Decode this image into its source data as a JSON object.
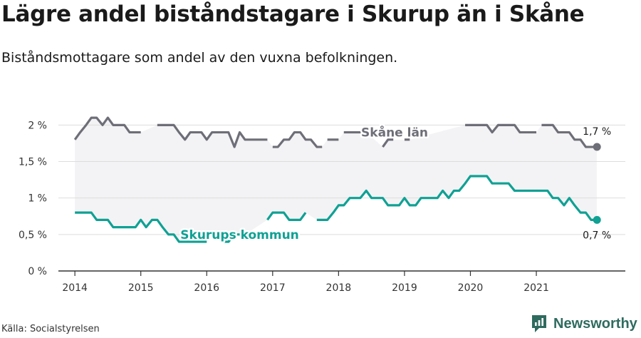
{
  "header": {
    "title": "Lägre andel biståndstagare i Skurup än i Skåne",
    "subtitle": "Biståndsmottagare som andel av den vuxna befolkningen."
  },
  "footer": {
    "source": "Källa: Socialstyrelsen",
    "brand": "Newsworthy"
  },
  "colors": {
    "skane": "#6e6e78",
    "skurup": "#0fa194",
    "band": "#f3f3f5",
    "grid": "#dddddd",
    "axis": "#333333",
    "brand": "#2f6b5f"
  },
  "chart_data": {
    "type": "line",
    "x_unit": "year (decimal)",
    "xlim": [
      2013.75,
      2022.35
    ],
    "ylim": [
      0,
      2.15
    ],
    "y_ticks": [
      0,
      0.5,
      1,
      1.5,
      2
    ],
    "y_tick_labels": [
      "0 %",
      "0,5 %",
      "1 %",
      "1,5 %",
      "2 %"
    ],
    "x_ticks": [
      2014,
      2015,
      2016,
      2017,
      2018,
      2019,
      2020,
      2021
    ],
    "x_tick_labels": [
      "2014",
      "2015",
      "2016",
      "2017",
      "2018",
      "2019",
      "2020",
      "2021"
    ],
    "grid": "horizontal",
    "series": [
      {
        "name": "Skåne län",
        "end_label": "1,7 %",
        "points": [
          [
            2014.0,
            1.8
          ],
          [
            2014.08,
            1.9
          ],
          [
            2014.17,
            2.0
          ],
          [
            2014.25,
            2.1
          ],
          [
            2014.33,
            2.1
          ],
          [
            2014.42,
            2.0
          ],
          [
            2014.5,
            2.1
          ],
          [
            2014.58,
            2.0
          ],
          [
            2014.67,
            2.0
          ],
          [
            2014.75,
            2.0
          ],
          [
            2014.83,
            1.9
          ],
          [
            2014.92,
            1.9
          ],
          [
            2015.0,
            1.9
          ],
          null,
          [
            2015.25,
            2.0
          ],
          [
            2015.33,
            2.0
          ],
          [
            2015.42,
            2.0
          ],
          [
            2015.5,
            2.0
          ],
          [
            2015.58,
            1.9
          ],
          [
            2015.67,
            1.8
          ],
          [
            2015.75,
            1.9
          ],
          [
            2015.83,
            1.9
          ],
          [
            2015.92,
            1.9
          ],
          [
            2016.0,
            1.8
          ],
          [
            2016.08,
            1.9
          ],
          [
            2016.17,
            1.9
          ],
          [
            2016.25,
            1.9
          ],
          [
            2016.33,
            1.9
          ],
          [
            2016.42,
            1.7
          ],
          [
            2016.5,
            1.9
          ],
          [
            2016.58,
            1.8
          ],
          [
            2016.67,
            1.8
          ],
          [
            2016.75,
            1.8
          ],
          [
            2016.83,
            1.8
          ],
          [
            2016.92,
            1.8
          ],
          null,
          [
            2017.0,
            1.7
          ],
          [
            2017.08,
            1.7
          ],
          [
            2017.17,
            1.8
          ],
          [
            2017.25,
            1.8
          ],
          [
            2017.33,
            1.9
          ],
          [
            2017.42,
            1.9
          ],
          [
            2017.5,
            1.8
          ],
          [
            2017.58,
            1.8
          ],
          [
            2017.67,
            1.7
          ],
          [
            2017.75,
            1.7
          ],
          null,
          [
            2017.83,
            1.8
          ],
          [
            2017.92,
            1.8
          ],
          [
            2018.0,
            1.8
          ],
          null,
          [
            2018.08,
            1.9
          ],
          [
            2018.17,
            1.9
          ],
          [
            2018.25,
            1.9
          ],
          [
            2018.33,
            1.9
          ],
          [
            2018.42,
            1.9
          ],
          null,
          [
            2018.67,
            1.7
          ],
          [
            2018.75,
            1.8
          ],
          [
            2018.83,
            1.8
          ],
          null,
          [
            2019.0,
            1.8
          ],
          [
            2019.08,
            1.8
          ],
          null,
          [
            2019.92,
            2.0
          ],
          [
            2020.0,
            2.0
          ],
          [
            2020.08,
            2.0
          ],
          [
            2020.17,
            2.0
          ],
          [
            2020.25,
            2.0
          ],
          [
            2020.33,
            1.9
          ],
          [
            2020.42,
            2.0
          ],
          [
            2020.5,
            2.0
          ],
          [
            2020.58,
            2.0
          ],
          [
            2020.67,
            2.0
          ],
          [
            2020.75,
            1.9
          ],
          [
            2020.83,
            1.9
          ],
          [
            2020.92,
            1.9
          ],
          [
            2021.0,
            1.9
          ],
          null,
          [
            2021.08,
            2.0
          ],
          [
            2021.17,
            2.0
          ],
          [
            2021.25,
            2.0
          ],
          [
            2021.33,
            1.9
          ],
          [
            2021.42,
            1.9
          ],
          [
            2021.5,
            1.9
          ],
          [
            2021.58,
            1.8
          ],
          [
            2021.67,
            1.8
          ],
          [
            2021.75,
            1.7
          ],
          [
            2021.83,
            1.7
          ],
          [
            2021.92,
            1.7
          ]
        ]
      },
      {
        "name": "Skurups kommun",
        "end_label": "0,7 %",
        "points": [
          [
            2014.0,
            0.8
          ],
          [
            2014.08,
            0.8
          ],
          [
            2014.17,
            0.8
          ],
          [
            2014.25,
            0.8
          ],
          [
            2014.33,
            0.7
          ],
          [
            2014.42,
            0.7
          ],
          [
            2014.5,
            0.7
          ],
          [
            2014.58,
            0.6
          ],
          [
            2014.67,
            0.6
          ],
          [
            2014.75,
            0.6
          ],
          [
            2014.83,
            0.6
          ],
          [
            2014.92,
            0.6
          ],
          [
            2015.0,
            0.7
          ],
          [
            2015.08,
            0.6
          ],
          [
            2015.17,
            0.7
          ],
          [
            2015.25,
            0.7
          ],
          [
            2015.33,
            0.6
          ],
          [
            2015.42,
            0.5
          ],
          [
            2015.5,
            0.5
          ],
          [
            2015.58,
            0.4
          ],
          [
            2015.67,
            0.4
          ],
          [
            2015.75,
            0.4
          ],
          [
            2015.83,
            0.4
          ],
          [
            2015.92,
            0.4
          ],
          [
            2016.0,
            0.4
          ],
          null,
          [
            2016.17,
            0.5
          ],
          [
            2016.25,
            0.4
          ],
          [
            2016.33,
            0.4
          ],
          [
            2016.42,
            0.5
          ],
          [
            2016.5,
            0.5
          ],
          [
            2016.58,
            0.5
          ],
          null,
          [
            2016.92,
            0.7
          ],
          [
            2017.0,
            0.8
          ],
          [
            2017.08,
            0.8
          ],
          [
            2017.17,
            0.8
          ],
          [
            2017.25,
            0.7
          ],
          [
            2017.33,
            0.7
          ],
          [
            2017.42,
            0.7
          ],
          [
            2017.5,
            0.8
          ],
          null,
          [
            2017.67,
            0.7
          ],
          [
            2017.75,
            0.7
          ],
          [
            2017.83,
            0.7
          ],
          [
            2017.92,
            0.8
          ],
          [
            2018.0,
            0.9
          ],
          [
            2018.08,
            0.9
          ],
          [
            2018.17,
            1.0
          ],
          [
            2018.25,
            1.0
          ],
          [
            2018.33,
            1.0
          ],
          [
            2018.42,
            1.1
          ],
          [
            2018.5,
            1.0
          ],
          [
            2018.58,
            1.0
          ],
          [
            2018.67,
            1.0
          ],
          [
            2018.75,
            0.9
          ],
          [
            2018.83,
            0.9
          ],
          [
            2018.92,
            0.9
          ],
          [
            2019.0,
            1.0
          ],
          [
            2019.08,
            0.9
          ],
          [
            2019.17,
            0.9
          ],
          [
            2019.25,
            1.0
          ],
          [
            2019.33,
            1.0
          ],
          [
            2019.42,
            1.0
          ],
          [
            2019.5,
            1.0
          ],
          [
            2019.58,
            1.1
          ],
          [
            2019.67,
            1.0
          ],
          [
            2019.75,
            1.1
          ],
          [
            2019.83,
            1.1
          ],
          [
            2019.92,
            1.2
          ],
          [
            2020.0,
            1.3
          ],
          [
            2020.08,
            1.3
          ],
          [
            2020.17,
            1.3
          ],
          [
            2020.25,
            1.3
          ],
          [
            2020.33,
            1.2
          ],
          [
            2020.42,
            1.2
          ],
          [
            2020.5,
            1.2
          ],
          [
            2020.58,
            1.2
          ],
          [
            2020.67,
            1.1
          ],
          [
            2020.75,
            1.1
          ],
          [
            2020.83,
            1.1
          ],
          [
            2020.92,
            1.1
          ],
          [
            2021.0,
            1.1
          ],
          [
            2021.08,
            1.1
          ],
          [
            2021.17,
            1.1
          ],
          [
            2021.25,
            1.0
          ],
          [
            2021.33,
            1.0
          ],
          [
            2021.42,
            0.9
          ],
          [
            2021.5,
            1.0
          ],
          [
            2021.58,
            0.9
          ],
          [
            2021.67,
            0.8
          ],
          [
            2021.75,
            0.8
          ],
          [
            2021.83,
            0.7
          ],
          [
            2021.92,
            0.7
          ]
        ]
      }
    ],
    "annotations": [
      {
        "text": "Skåne län",
        "series": "Skåne län",
        "at": [
          2018.85,
          1.9
        ]
      },
      {
        "text": "Skurups kommun",
        "series": "Skurups kommun",
        "at": [
          2016.5,
          0.5
        ]
      }
    ]
  }
}
